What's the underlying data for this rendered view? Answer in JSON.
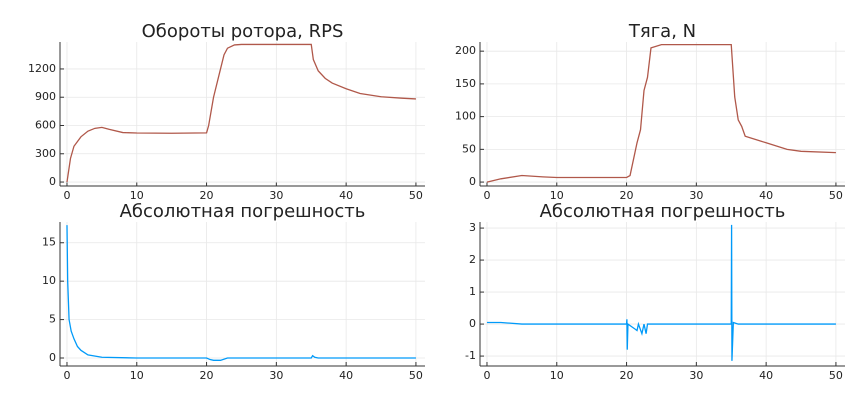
{
  "chart_data": [
    {
      "type": "line",
      "title": "Обороты ротора, RPS",
      "color": "#b0584a",
      "grid": true,
      "x": [
        0,
        0.5,
        1,
        2,
        3,
        4,
        5,
        6,
        8,
        10,
        15,
        20,
        20.3,
        21,
        22,
        22.5,
        23,
        24,
        25,
        30,
        35,
        35.3,
        36,
        37,
        38,
        40,
        42,
        45,
        48,
        50
      ],
      "values": [
        0,
        250,
        380,
        480,
        540,
        570,
        580,
        560,
        525,
        520,
        518,
        522,
        600,
        900,
        1200,
        1350,
        1420,
        1455,
        1460,
        1460,
        1460,
        1300,
        1180,
        1100,
        1050,
        990,
        940,
        905,
        890,
        882
      ],
      "xlim": [
        -1,
        51.3
      ],
      "ylim": [
        -42,
        1486
      ],
      "xticks": [
        0,
        10,
        20,
        30,
        40,
        50
      ],
      "yticks": [
        0,
        300,
        600,
        900,
        1200
      ]
    },
    {
      "type": "line",
      "title": "Тяга, N",
      "color": "#b0584a",
      "grid": true,
      "x": [
        0,
        2,
        5,
        8,
        10,
        20,
        20.5,
        21.5,
        22,
        22.5,
        23,
        23.5,
        25,
        30,
        35,
        35.5,
        36,
        36.5,
        37,
        40,
        43,
        45,
        50
      ],
      "values": [
        0,
        5,
        10,
        8,
        7,
        7,
        10,
        60,
        80,
        140,
        160,
        205,
        210,
        210,
        210,
        130,
        95,
        85,
        70,
        60,
        50,
        47,
        45
      ],
      "xlim": [
        -1,
        51.3
      ],
      "ylim": [
        -6,
        214
      ],
      "xticks": [
        0,
        10,
        20,
        30,
        40,
        50
      ],
      "yticks": [
        0,
        50,
        100,
        150,
        200
      ]
    },
    {
      "type": "line",
      "title": "Абсолютная погрешность",
      "color": "#009af9",
      "grid": true,
      "x": [
        0,
        0.1,
        0.3,
        0.6,
        1,
        1.5,
        2,
        3,
        5,
        10,
        20,
        20.5,
        21,
        22,
        23,
        35,
        35.2,
        35.5,
        36,
        50
      ],
      "values": [
        17.3,
        10,
        5,
        3.5,
        2.5,
        1.5,
        1,
        0.4,
        0.1,
        0,
        0,
        -0.2,
        -0.3,
        -0.3,
        0,
        0,
        0.3,
        0.1,
        0,
        0
      ],
      "xlim": [
        -1,
        51.3
      ],
      "ylim": [
        -1.04,
        17.7
      ],
      "xticks": [
        0,
        10,
        20,
        30,
        40,
        50
      ],
      "yticks": [
        0,
        5,
        10,
        15
      ]
    },
    {
      "type": "line",
      "title": "Абсолютная погрешность",
      "color": "#009af9",
      "grid": true,
      "x": [
        0,
        2,
        5,
        20,
        20.05,
        20.1,
        20.2,
        21.5,
        21.7,
        22.2,
        22.5,
        22.8,
        23,
        35,
        35.05,
        35.1,
        35.3,
        36,
        50
      ],
      "values": [
        0.05,
        0.05,
        0,
        0,
        0.15,
        -0.8,
        0,
        -0.2,
        0,
        -0.3,
        0,
        -0.3,
        0,
        0,
        3.1,
        -1.15,
        0.05,
        0,
        0
      ],
      "xlim": [
        -1,
        51.3
      ],
      "ylim": [
        -1.31,
        3.19
      ],
      "xticks": [
        0,
        10,
        20,
        30,
        40,
        50
      ],
      "yticks": [
        -1,
        0,
        1,
        2,
        3
      ]
    }
  ]
}
